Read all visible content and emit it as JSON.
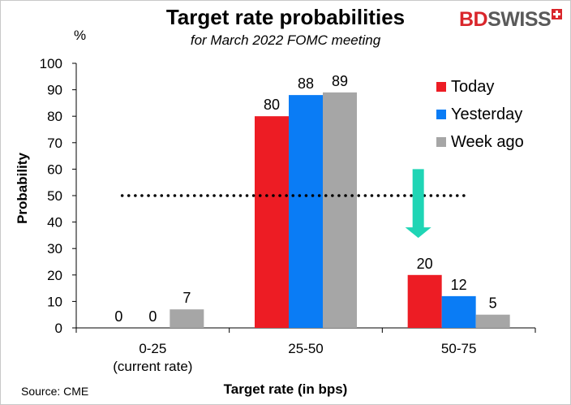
{
  "header": {
    "title": "Target rate probabilities",
    "subtitle": "for March 2022 FOMC meeting",
    "logo_bd": "BD",
    "logo_swiss": "SWISS"
  },
  "footer": {
    "source": "Source: CME"
  },
  "chart_data": {
    "type": "bar",
    "title": "Target rate probabilities",
    "subtitle": "for March 2022 FOMC meeting",
    "unit": "%",
    "ylabel": "Probability",
    "xlabel": "Target rate (in bps)",
    "categories": [
      [
        "0-25",
        "(current rate)"
      ],
      [
        "25-50"
      ],
      [
        "50-75"
      ]
    ],
    "series": [
      {
        "name": "Today",
        "color": "#ed1c24",
        "values": [
          0,
          80,
          20
        ]
      },
      {
        "name": "Yesterday",
        "color": "#0a7cf5",
        "values": [
          0,
          88,
          12
        ]
      },
      {
        "name": "Week ago",
        "color": "#a6a6a6",
        "values": [
          7,
          89,
          5
        ]
      }
    ],
    "ylim": [
      0,
      100
    ],
    "yticks": [
      0,
      10,
      20,
      30,
      40,
      50,
      60,
      70,
      80,
      90,
      100
    ],
    "grid": false,
    "legend": "right",
    "reference_line": {
      "y": 50,
      "style": "dotted"
    },
    "annotation": {
      "type": "arrow",
      "direction": "down",
      "color": "#1fd5b5",
      "category": "50-75"
    }
  }
}
